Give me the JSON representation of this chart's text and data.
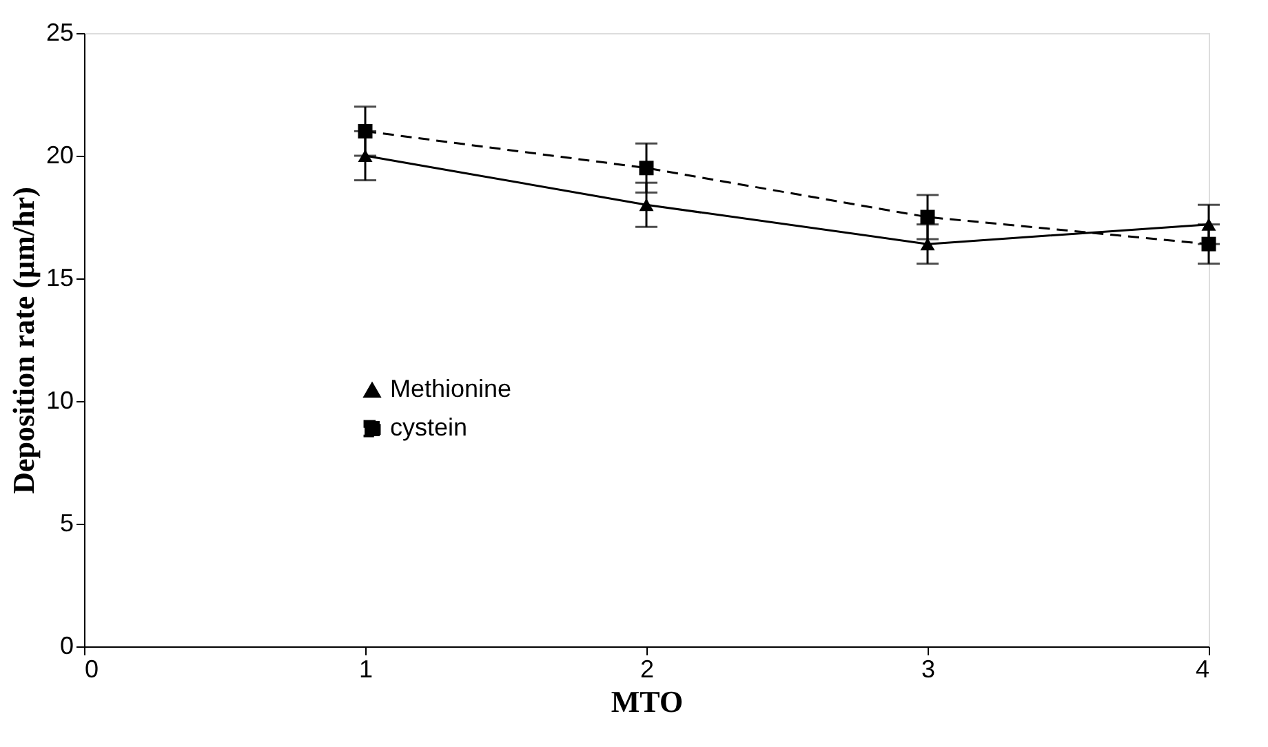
{
  "chart_data": {
    "type": "line",
    "xlabel": "MTO",
    "ylabel": "Deposition rate (µm/hr)",
    "x": [
      1,
      2,
      3,
      4
    ],
    "series": [
      {
        "name": "Methionine",
        "color": "#000000",
        "values": [
          20,
          18,
          16.4,
          17.2
        ],
        "errors": [
          1,
          0.9,
          0.8,
          0.8
        ],
        "marker": "triangle",
        "line_style": "solid"
      },
      {
        "name": "cystein",
        "color": "#000000",
        "values": [
          21,
          19.5,
          17.5,
          16.4
        ],
        "errors": [
          1,
          1,
          0.9,
          0.8
        ],
        "marker": "square",
        "line_style": "dashed"
      }
    ],
    "xlim": [
      0,
      4
    ],
    "xticks": [
      0,
      1,
      2,
      3,
      4
    ],
    "ylim": [
      0,
      25
    ],
    "yticks": [
      0,
      5,
      10,
      15,
      20,
      25
    ],
    "grid": false,
    "legend": "left"
  }
}
